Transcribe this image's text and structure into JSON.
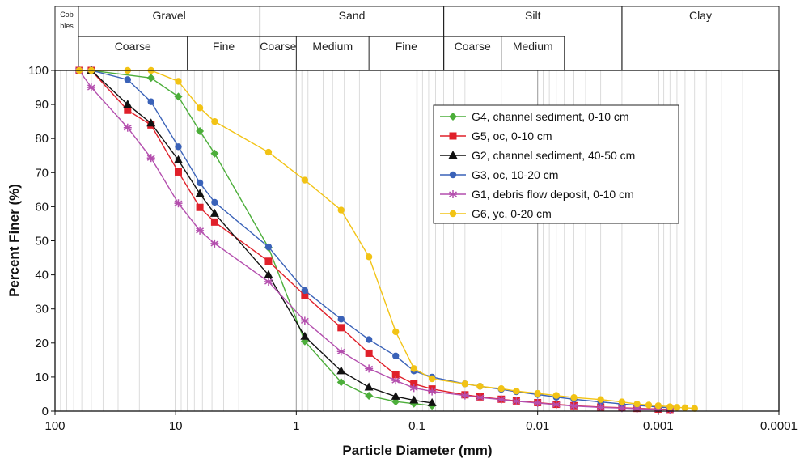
{
  "chart_data": {
    "type": "line",
    "x_scale": "log",
    "x_reversed": true,
    "xlabel": "Particle Diameter (mm)",
    "ylabel": "Percent Finer (%)",
    "xlim": [
      100,
      0.0001
    ],
    "ylim": [
      0,
      100
    ],
    "x_tick_labels": [
      "100",
      "10",
      "1",
      "0.1",
      "0.01",
      "0.001",
      "0.0001"
    ],
    "x_ticks": [
      100,
      10,
      1,
      0.1,
      0.01,
      0.001,
      0.0001
    ],
    "y_ticks": [
      0,
      10,
      20,
      30,
      40,
      50,
      60,
      70,
      80,
      90,
      100
    ],
    "grid": "vertical log minor lines",
    "legend_position": "top-right",
    "size_classes": {
      "top": [
        {
          "label": "Cob bles",
          "from": 100,
          "to": 64
        },
        {
          "label": "Gravel",
          "from": 64,
          "to": 2
        },
        {
          "label": "Sand",
          "from": 2,
          "to": 0.06
        },
        {
          "label": "Silt",
          "from": 0.06,
          "to": 0.002
        },
        {
          "label": "Clay",
          "from": 0.002,
          "to": 0.0001
        }
      ],
      "sub": [
        {
          "label": "Coarse",
          "from": 64,
          "to": 8
        },
        {
          "label": "Fine",
          "from": 8,
          "to": 2
        },
        {
          "label": "Coarse",
          "from": 2,
          "to": 1
        },
        {
          "label": "Medium",
          "from": 1,
          "to": 0.25
        },
        {
          "label": "Fine",
          "from": 0.25,
          "to": 0.06
        },
        {
          "label": "Coarse",
          "from": 0.06,
          "to": 0.02
        },
        {
          "label": "Medium",
          "from": 0.02,
          "to": 0.006
        }
      ]
    },
    "series": [
      {
        "name": "G4, channel sediment, 0-10 cm",
        "color": "#4cae3a",
        "marker": "diamond",
        "x": [
          63,
          50,
          16,
          9.5,
          6.3,
          4.75,
          1.7,
          0.85,
          0.425,
          0.25,
          0.15,
          0.106,
          0.075
        ],
        "y": [
          100,
          100,
          97.8,
          92.3,
          82.2,
          75.6,
          48,
          20.5,
          8.5,
          4.5,
          2.8,
          2.2,
          1.6
        ]
      },
      {
        "name": "G5, oc, 0-10 cm",
        "color": "#e0202a",
        "marker": "square",
        "x": [
          63,
          50,
          25,
          16,
          9.5,
          6.3,
          4.75,
          1.7,
          0.85,
          0.425,
          0.25,
          0.15,
          0.106,
          0.075,
          0.04,
          0.03,
          0.02,
          0.015,
          0.01,
          0.007,
          0.005,
          0.003,
          0.002,
          0.0015,
          0.001,
          0.0008
        ],
        "y": [
          100,
          100,
          88.3,
          84,
          70.2,
          59.8,
          55.5,
          44,
          34,
          24.5,
          17,
          10.7,
          8,
          6.5,
          4.8,
          4.2,
          3.5,
          3,
          2.5,
          2,
          1.6,
          1.2,
          1,
          0.8,
          0.6,
          0.5
        ]
      },
      {
        "name": "G2, channel sediment, 40-50 cm",
        "color": "#111111",
        "marker": "triangle",
        "x": [
          50,
          25,
          16,
          9.5,
          6.3,
          4.75,
          1.7,
          0.85,
          0.425,
          0.25,
          0.15,
          0.106,
          0.075
        ],
        "y": [
          100,
          90,
          84.5,
          73.7,
          63.8,
          58,
          40,
          21.9,
          11.8,
          7,
          4.3,
          3.2,
          2.4
        ]
      },
      {
        "name": "G3, oc, 10-20 cm",
        "color": "#3a62b8",
        "marker": "circle",
        "x": [
          63,
          50,
          25,
          16,
          9.5,
          6.3,
          4.75,
          1.7,
          0.85,
          0.425,
          0.25,
          0.15,
          0.106,
          0.075,
          0.04,
          0.03,
          0.02,
          0.015,
          0.01,
          0.007,
          0.005,
          0.003,
          0.002,
          0.0015,
          0.001,
          0.0008
        ],
        "y": [
          100,
          100,
          97.3,
          90.8,
          77.6,
          67,
          61.3,
          48.2,
          35.4,
          27,
          21,
          16.2,
          11.8,
          10,
          8,
          7.3,
          6.4,
          5.7,
          4.9,
          4.1,
          3.5,
          2.7,
          2.1,
          1.7,
          1.2,
          1
        ]
      },
      {
        "name": "G1, debris flow deposit, 0-10 cm",
        "color": "#b44fae",
        "marker": "star",
        "x": [
          63,
          50,
          25,
          16,
          9.5,
          6.3,
          4.75,
          1.7,
          0.85,
          0.425,
          0.25,
          0.15,
          0.106,
          0.075,
          0.04,
          0.03,
          0.02,
          0.015,
          0.01,
          0.007,
          0.005,
          0.003,
          0.002,
          0.0015,
          0.001,
          0.0008
        ],
        "y": [
          100,
          95,
          83.2,
          74.3,
          61,
          53,
          49.2,
          38,
          26.5,
          17.5,
          12.5,
          9,
          6.8,
          5.8,
          4.6,
          4,
          3.4,
          2.9,
          2.4,
          1.9,
          1.5,
          1.1,
          0.9,
          0.7,
          0.5,
          0.4
        ]
      },
      {
        "name": "G6, yc, 0-20 cm",
        "color": "#f2c315",
        "marker": "circle",
        "x": [
          63,
          50,
          25,
          16,
          9.5,
          6.3,
          4.75,
          1.7,
          0.85,
          0.425,
          0.25,
          0.15,
          0.106,
          0.075,
          0.04,
          0.03,
          0.02,
          0.015,
          0.01,
          0.007,
          0.005,
          0.003,
          0.002,
          0.0015,
          0.0012,
          0.001,
          0.0008,
          0.0007,
          0.0006,
          0.0005
        ],
        "y": [
          100,
          100,
          100,
          100,
          96.8,
          89,
          85,
          76,
          67.8,
          59,
          45.3,
          23.3,
          12.5,
          9.5,
          8,
          7.3,
          6.6,
          5.9,
          5.2,
          4.6,
          4,
          3.4,
          2.7,
          2.1,
          1.8,
          1.6,
          1.3,
          1.1,
          1,
          0.8
        ]
      }
    ]
  }
}
